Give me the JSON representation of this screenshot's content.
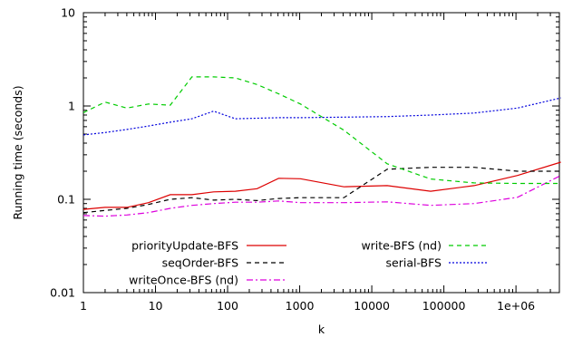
{
  "chart_data": {
    "type": "line",
    "xlabel": "k",
    "ylabel": "Running time (seconds)",
    "x_scale": "log",
    "y_scale": "log",
    "xlim": [
      1,
      4000000
    ],
    "ylim": [
      0.01,
      10
    ],
    "x_ticks": [
      {
        "value": 1,
        "label": "1"
      },
      {
        "value": 10,
        "label": "10"
      },
      {
        "value": 100,
        "label": "100"
      },
      {
        "value": 1000,
        "label": "1000"
      },
      {
        "value": 10000,
        "label": "10000"
      },
      {
        "value": 100000,
        "label": "100000"
      },
      {
        "value": 1000000,
        "label": "1e+06"
      }
    ],
    "y_ticks": [
      {
        "value": 0.01,
        "label": "0.01"
      },
      {
        "value": 0.1,
        "label": "0.1"
      },
      {
        "value": 1,
        "label": "1"
      },
      {
        "value": 10,
        "label": "10"
      }
    ],
    "grid": false,
    "legend_position": "bottom, two columns",
    "series": [
      {
        "name": "priorityUpdate-BFS",
        "color": "#dd0000",
        "dash": "solid",
        "legend_col": 0,
        "legend_row": 0,
        "x": [
          1,
          2,
          4,
          8,
          16,
          32,
          64,
          128,
          256,
          512,
          1024,
          4096,
          16384,
          65536,
          262144,
          1048576,
          4194304
        ],
        "y": [
          0.078,
          0.082,
          0.082,
          0.092,
          0.112,
          0.112,
          0.12,
          0.122,
          0.13,
          0.168,
          0.166,
          0.136,
          0.14,
          0.122,
          0.14,
          0.18,
          0.25
        ]
      },
      {
        "name": "seqOrder-BFS",
        "color": "#000000",
        "dash": "dashed",
        "legend_col": 0,
        "legend_row": 1,
        "x": [
          1,
          2,
          4,
          8,
          16,
          32,
          64,
          128,
          256,
          512,
          1024,
          4096,
          16384,
          65536,
          262144,
          1048576,
          4194304
        ],
        "y": [
          0.072,
          0.076,
          0.08,
          0.088,
          0.1,
          0.104,
          0.098,
          0.1,
          0.097,
          0.102,
          0.104,
          0.104,
          0.21,
          0.22,
          0.22,
          0.2,
          0.2
        ]
      },
      {
        "name": "writeOnce-BFS (nd)",
        "color": "#dd00dd",
        "dash": "dashdot",
        "legend_col": 0,
        "legend_row": 2,
        "x": [
          1,
          2,
          4,
          8,
          16,
          32,
          64,
          128,
          256,
          512,
          1024,
          4096,
          16384,
          65536,
          262144,
          1048576,
          4194304
        ],
        "y": [
          0.067,
          0.066,
          0.068,
          0.072,
          0.08,
          0.086,
          0.09,
          0.093,
          0.093,
          0.096,
          0.092,
          0.092,
          0.094,
          0.086,
          0.09,
          0.105,
          0.18
        ]
      },
      {
        "name": "write-BFS (nd)",
        "color": "#00cc00",
        "dash": "dashed",
        "legend_col": 1,
        "legend_row": 0,
        "x": [
          1,
          2,
          4,
          8,
          16,
          32,
          64,
          128,
          256,
          512,
          1024,
          4096,
          16384,
          65536,
          262144,
          1048576,
          4194304
        ],
        "y": [
          0.85,
          1.1,
          0.95,
          1.05,
          1.02,
          2.05,
          2.05,
          2.0,
          1.7,
          1.35,
          1.05,
          0.55,
          0.24,
          0.165,
          0.15,
          0.148,
          0.148
        ]
      },
      {
        "name": "serial-BFS",
        "color": "#0000dd",
        "dash": "dotted",
        "legend_col": 1,
        "legend_row": 1,
        "x": [
          1,
          2,
          4,
          8,
          16,
          32,
          64,
          128,
          256,
          512,
          1024,
          4096,
          16384,
          65536,
          262144,
          1048576,
          4194304
        ],
        "y": [
          0.49,
          0.52,
          0.56,
          0.61,
          0.67,
          0.73,
          0.88,
          0.73,
          0.74,
          0.75,
          0.75,
          0.76,
          0.77,
          0.8,
          0.84,
          0.95,
          1.22
        ]
      }
    ]
  }
}
